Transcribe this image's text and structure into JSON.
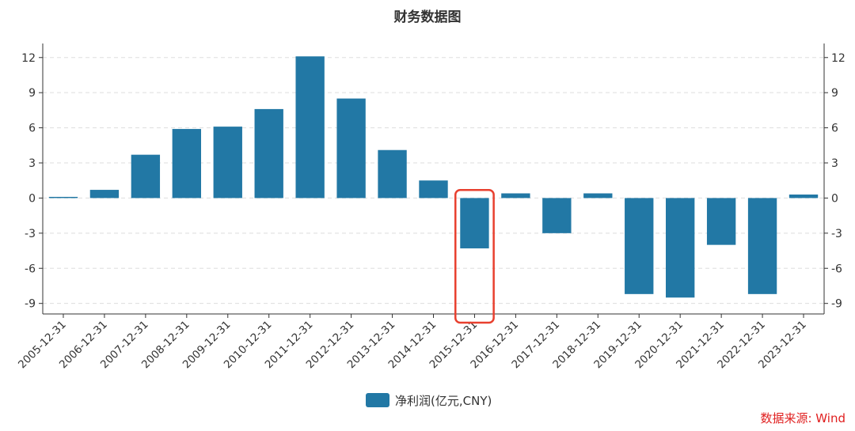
{
  "chart_data": {
    "type": "bar",
    "title": "财务数据图",
    "categories": [
      "2005-12-31",
      "2006-12-31",
      "2007-12-31",
      "2008-12-31",
      "2009-12-31",
      "2010-12-31",
      "2011-12-31",
      "2012-12-31",
      "2013-12-31",
      "2014-12-31",
      "2015-12-31",
      "2016-12-31",
      "2017-12-31",
      "2018-12-31",
      "2019-12-31",
      "2020-12-31",
      "2021-12-31",
      "2022-12-31",
      "2023-12-31"
    ],
    "series": [
      {
        "name": "净利润(亿元,CNY)",
        "values": [
          0.1,
          0.7,
          3.7,
          5.9,
          6.1,
          7.6,
          12.1,
          8.5,
          4.1,
          1.5,
          -4.3,
          0.4,
          -3.0,
          0.4,
          -8.2,
          -8.5,
          -4.0,
          -8.2,
          0.3
        ]
      }
    ],
    "ylim": [
      -9.9,
      13.2
    ],
    "yticks": [
      12,
      9,
      6,
      3,
      0,
      -3,
      -6,
      -9
    ],
    "grid": true,
    "legend_position": "bottom-center",
    "highlighted_category": "2015-12-31",
    "colors": {
      "bar": "#2278a5",
      "highlight": "#e8402f",
      "grid": "#dddddd",
      "axis": "#333333",
      "source": "#e02020"
    }
  },
  "source_note": "数据来源: Wind"
}
